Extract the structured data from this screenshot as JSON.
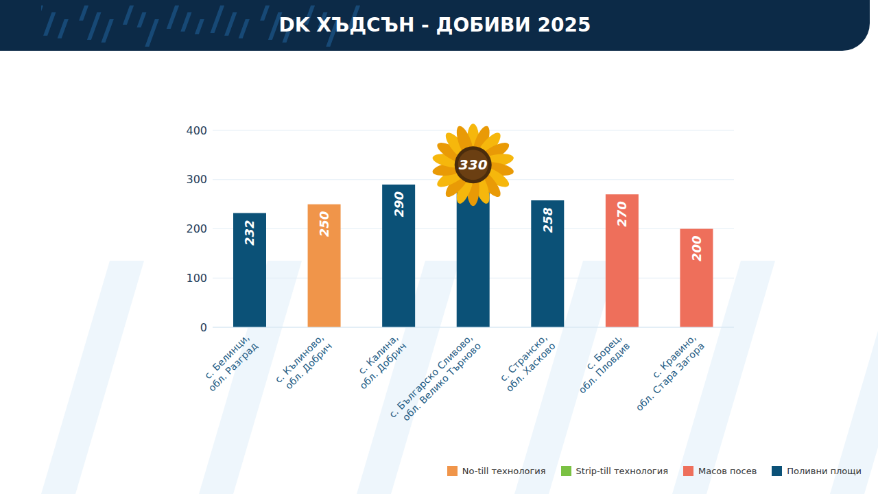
{
  "chart_data": {
    "type": "bar",
    "title": "DK ХЪДСЪН - ДОБИВИ 2025",
    "categories": [
      "с. Белинци, обл. Разград",
      "с. Кълиново, обл. Добрич",
      "с. Калина, обл. Добрич",
      "с. Българско Сливово, обл. Велико Търново",
      "с. Странско, обл. Хасково",
      "с. Борец, обл. Пловдив",
      "с. Кравино, обл. Стара Загора"
    ],
    "series": [
      {
        "name": "No-till технология",
        "color": "#f0954a",
        "values": [
          null,
          250,
          null,
          null,
          null,
          null,
          null
        ]
      },
      {
        "name": "Strip-till технология",
        "color": "#7ac143",
        "values": [
          null,
          null,
          null,
          null,
          null,
          null,
          null
        ]
      },
      {
        "name": "Масов посев",
        "color": "#ee6f5b",
        "values": [
          null,
          null,
          null,
          null,
          null,
          270,
          200
        ]
      },
      {
        "name": "Поливни площи",
        "color": "#0b5177",
        "values": [
          232,
          null,
          290,
          330,
          258,
          null,
          null
        ]
      }
    ],
    "ylim": [
      0,
      400
    ],
    "yticks": [
      0,
      100,
      200,
      300,
      400
    ],
    "grid": true,
    "stacked": true,
    "data_labels": true,
    "legend": "bottom-right"
  }
}
